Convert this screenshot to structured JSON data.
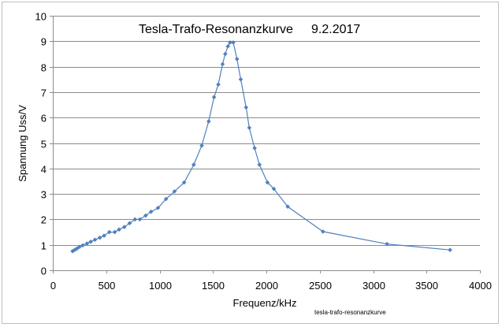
{
  "chart_data": {
    "type": "scatter",
    "title": "Tesla-Trafo-Resonanzkurve",
    "title_date": "9.2.2017",
    "xlabel": "Frequenz/kHz",
    "ylabel": "Spannung Uss/V",
    "caption": "tesla-trafo-resonanzkurve",
    "xlim": [
      0,
      4000
    ],
    "ylim": [
      0,
      10
    ],
    "x_ticks": [
      0,
      500,
      1000,
      1500,
      2000,
      2500,
      3000,
      3500,
      4000
    ],
    "y_ticks": [
      0,
      1,
      2,
      3,
      4,
      5,
      6,
      7,
      8,
      9,
      10
    ],
    "grid": "horizontal",
    "line_color": "#4f81bd",
    "marker_color": "#4f81bd",
    "series": [
      {
        "points": [
          [
            185,
            0.75
          ],
          [
            205,
            0.8
          ],
          [
            225,
            0.85
          ],
          [
            250,
            0.92
          ],
          [
            280,
            0.98
          ],
          [
            320,
            1.05
          ],
          [
            355,
            1.12
          ],
          [
            395,
            1.2
          ],
          [
            440,
            1.28
          ],
          [
            480,
            1.36
          ],
          [
            530,
            1.5
          ],
          [
            580,
            1.5
          ],
          [
            620,
            1.6
          ],
          [
            670,
            1.7
          ],
          [
            720,
            1.85
          ],
          [
            770,
            2.0
          ],
          [
            815,
            2.0
          ],
          [
            870,
            2.15
          ],
          [
            920,
            2.3
          ],
          [
            985,
            2.45
          ],
          [
            1060,
            2.8
          ],
          [
            1140,
            3.1
          ],
          [
            1230,
            3.45
          ],
          [
            1320,
            4.15
          ],
          [
            1395,
            4.9
          ],
          [
            1460,
            5.85
          ],
          [
            1510,
            6.8
          ],
          [
            1550,
            7.3
          ],
          [
            1590,
            8.1
          ],
          [
            1615,
            8.5
          ],
          [
            1640,
            8.8
          ],
          [
            1660,
            8.95
          ],
          [
            1690,
            8.95
          ],
          [
            1725,
            8.3
          ],
          [
            1760,
            7.5
          ],
          [
            1810,
            6.4
          ],
          [
            1840,
            5.6
          ],
          [
            1890,
            4.8
          ],
          [
            1935,
            4.15
          ],
          [
            2010,
            3.45
          ],
          [
            2070,
            3.2
          ],
          [
            2200,
            2.5
          ],
          [
            2530,
            1.52
          ],
          [
            3130,
            1.03
          ],
          [
            3720,
            0.8
          ]
        ]
      }
    ]
  }
}
